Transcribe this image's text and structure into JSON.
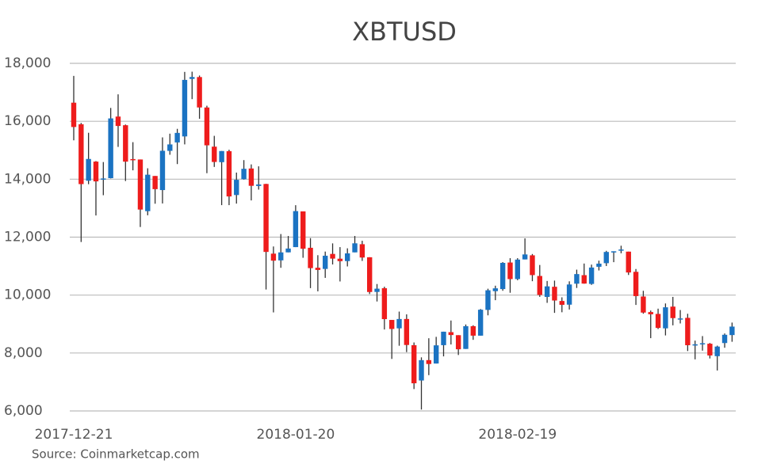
{
  "chart_data": {
    "type": "candlestick",
    "title": "XBTUSD",
    "source": "Source: Coinmarketcap.com",
    "up_color": "#1b73c2",
    "down_color": "#ee1c1c",
    "grid": true,
    "ylim": [
      6000,
      18000
    ],
    "yticks": [
      {
        "value": 6000,
        "label": "6,000"
      },
      {
        "value": 8000,
        "label": "8,000"
      },
      {
        "value": 10000,
        "label": "10,000"
      },
      {
        "value": 12000,
        "label": "12,000"
      },
      {
        "value": 14000,
        "label": "14,000"
      },
      {
        "value": 16000,
        "label": "16,000"
      },
      {
        "value": 18000,
        "label": "18,000"
      }
    ],
    "categories": [
      "2017-12-21",
      null,
      null,
      null,
      null,
      null,
      null,
      null,
      null,
      null,
      null,
      null,
      null,
      null,
      null,
      null,
      null,
      null,
      null,
      null,
      null,
      null,
      null,
      null,
      null,
      null,
      null,
      null,
      null,
      null,
      "2018-01-20",
      null,
      null,
      null,
      null,
      null,
      null,
      null,
      null,
      null,
      null,
      null,
      null,
      null,
      null,
      null,
      null,
      null,
      null,
      null,
      null,
      null,
      null,
      null,
      null,
      null,
      null,
      null,
      null,
      null,
      "2018-02-19",
      null,
      null,
      null,
      null,
      null,
      null,
      null,
      null,
      null,
      null,
      null,
      null,
      null,
      null,
      null,
      null,
      null,
      null,
      null,
      null,
      null,
      null,
      null,
      null,
      null,
      null,
      null,
      null,
      null
    ],
    "open": [
      16642,
      15898,
      13948,
      14608,
      13995,
      14036,
      16163,
      15864,
      14695,
      14681,
      12897,
      14112,
      13625,
      14978,
      15270,
      15477,
      17462,
      17527,
      16476,
      15124,
      14588,
      14969,
      13454,
      14000,
      14370,
      13767,
      13836,
      11431,
      11198,
      11475,
      11656,
      12889,
      11633,
      10944,
      10903,
      11421,
      11256,
      11174,
      11475,
      11756,
      11306,
      10109,
      10237,
      9142,
      8852,
      9175,
      8270,
      7051,
      7755,
      7637,
      8271,
      8720,
      8616,
      8141,
      8926,
      8599,
      9488,
      10135,
      10207,
      11124,
      10553,
      11231,
      11373,
      10660,
      9937,
      10287,
      9796,
      9669,
      10393,
      10688,
      10385,
      10977,
      11101,
      11498,
      11532,
      11500,
      10803,
      9951,
      9414,
      9350,
      8852,
      9602,
      9174,
      9214,
      8290,
      8322,
      8321,
      7891,
      8344,
      8619
    ],
    "high": [
      17567,
      15943,
      15603,
      14626,
      14593,
      16461,
      16930,
      15888,
      15279,
      14681,
      14377,
      14112,
      15444,
      15572,
      15739,
      17705,
      17712,
      17579,
      16537,
      15497,
      14973,
      15018,
      14229,
      14659,
      14511,
      14445,
      13843,
      11678,
      12107,
      12040,
      13103,
      12889,
      11966,
      11377,
      11502,
      11785,
      11656,
      11614,
      12040,
      11875,
      11307,
      10382,
      10289,
      9142,
      9430,
      9334,
      8364,
      7850,
      8510,
      8558,
      8736,
      9122,
      8616,
      8985,
      8958,
      9518,
      10220,
      10324,
      11139,
      11274,
      11274,
      11958,
      11418,
      11039,
      10487,
      10500,
      9923,
      10475,
      10878,
      11089,
      11052,
      11189,
      11528,
      11512,
      11704,
      11500,
      10900,
      10148,
      9466,
      9531,
      9711,
      9937,
      9484,
      9355,
      8428,
      8585,
      8346,
      8254,
      8675,
      9051
    ],
    "low": [
      15342,
      11833,
      13828,
      12748,
      13448,
      14028,
      15115,
      13937,
      14307,
      12350,
      12755,
      13154,
      13163,
      14844,
      14522,
      15202,
      16764,
      16087,
      14208,
      14424,
      13105,
      13105,
      13158,
      13986,
      13268,
      13641,
      10194,
      9402,
      10942,
      11475,
      11656,
      11288,
      10240,
      10129,
      10594,
      11057,
      10470,
      10989,
      11475,
      11179,
      10036,
      9779,
      8812,
      7796,
      8251,
      8031,
      6756,
      6048,
      7236,
      7637,
      7884,
      8295,
      7931,
      8141,
      8455,
      8599,
      9301,
      9824,
      10149,
      10080,
      10513,
      11231,
      10479,
      9939,
      9732,
      9386,
      9407,
      9501,
      10246,
      10393,
      10353,
      10850,
      11003,
      11136,
      11443,
      10694,
      9660,
      9357,
      8513,
      8828,
      8607,
      8956,
      9021,
      8068,
      7781,
      8082,
      7812,
      7397,
      8182,
      8389
    ],
    "close": [
      15802,
      13831,
      14699,
      13925,
      14026,
      16099,
      15838,
      14606,
      14656,
      12952,
      14156,
      13657,
      14982,
      15201,
      15599,
      17429,
      17527,
      16477,
      15170,
      14595,
      14973,
      13405,
      13980,
      14360,
      13772,
      13819,
      11490,
      11188,
      11474,
      11607,
      12899,
      11600,
      10931,
      10868,
      11359,
      11259,
      11171,
      11440,
      11787,
      11296,
      10106,
      10221,
      9170,
      8830,
      9174,
      8277,
      6955,
      7754,
      7621,
      8265,
      8736,
      8621,
      8129,
      8926,
      8599,
      9495,
      10166,
      10233,
      11112,
      10552,
      11225,
      11403,
      10690,
      10005,
      10301,
      9813,
      9664,
      10366,
      10725,
      10397,
      10951,
      11086,
      11489,
      11512,
      11573,
      10780,
      9965,
      9396,
      9337,
      8866,
      9578,
      9205,
      9194,
      8269,
      8300,
      8338,
      7916,
      8223,
      8630,
      8913
    ]
  }
}
